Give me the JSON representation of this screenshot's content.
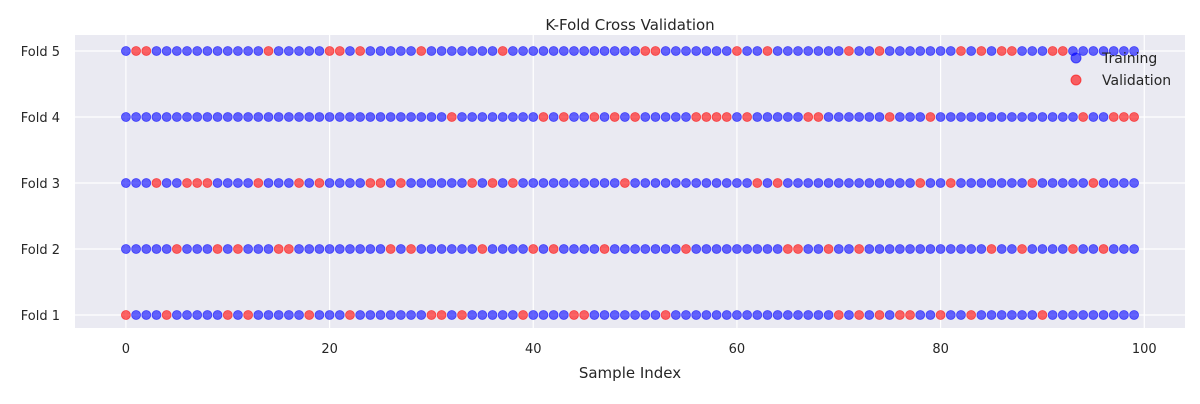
{
  "chart_data": {
    "type": "scatter",
    "title": "K-Fold Cross Validation",
    "xlabel": "Sample Index",
    "ylabel": "",
    "xlim": [
      -5,
      104
    ],
    "x_ticks": [
      0,
      20,
      40,
      60,
      80,
      100
    ],
    "n_samples": 100,
    "categories": [
      "Fold 1",
      "Fold 2",
      "Fold 3",
      "Fold 4",
      "Fold 5"
    ],
    "grid": true,
    "legend_position": "top-right",
    "series": [
      {
        "name": "Training",
        "color": "#0000ff"
      },
      {
        "name": "Validation",
        "color": "#ff0000"
      }
    ],
    "validation_indices": {
      "Fold 1": [
        0,
        4,
        10,
        12,
        18,
        22,
        30,
        31,
        33,
        39,
        44,
        45,
        53,
        70,
        72,
        74,
        76,
        77,
        80,
        83,
        90
      ],
      "Fold 2": [
        5,
        9,
        11,
        15,
        16,
        26,
        28,
        35,
        40,
        42,
        47,
        55,
        65,
        66,
        69,
        72,
        85,
        88,
        93,
        96
      ],
      "Fold 3": [
        3,
        6,
        7,
        8,
        13,
        17,
        19,
        24,
        25,
        27,
        34,
        36,
        38,
        49,
        62,
        64,
        78,
        81,
        89,
        95
      ],
      "Fold 4": [
        32,
        41,
        43,
        46,
        48,
        50,
        56,
        57,
        58,
        59,
        61,
        67,
        68,
        75,
        79,
        94,
        97,
        98,
        99
      ],
      "Fold 5": [
        1,
        2,
        14,
        20,
        21,
        23,
        29,
        37,
        51,
        52,
        60,
        63,
        71,
        74,
        82,
        84,
        86,
        87,
        91,
        92
      ]
    }
  }
}
